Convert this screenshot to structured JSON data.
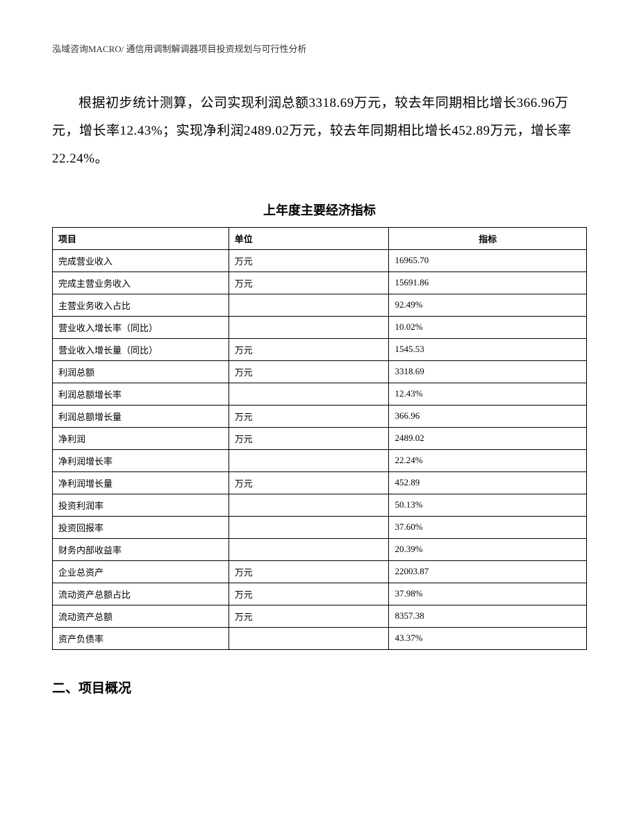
{
  "header": {
    "text": "泓域咨询MACRO/ 通信用调制解调器项目投资规划与可行性分析"
  },
  "paragraph": {
    "text": "根据初步统计测算，公司实现利润总额3318.69万元，较去年同期相比增长366.96万元，增长率12.43%；实现净利润2489.02万元，较去年同期相比增长452.89万元，增长率22.24%。"
  },
  "table": {
    "title": "上年度主要经济指标",
    "columns": {
      "project": "项目",
      "unit": "单位",
      "indicator": "指标"
    },
    "rows": [
      {
        "project": "完成营业收入",
        "unit": "万元",
        "indicator": "16965.70"
      },
      {
        "project": "完成主营业务收入",
        "unit": "万元",
        "indicator": "15691.86"
      },
      {
        "project": "主营业务收入占比",
        "unit": "",
        "indicator": "92.49%"
      },
      {
        "project": "营业收入增长率（同比）",
        "unit": "",
        "indicator": "10.02%"
      },
      {
        "project": "营业收入增长量（同比）",
        "unit": "万元",
        "indicator": "1545.53"
      },
      {
        "project": "利润总额",
        "unit": "万元",
        "indicator": "3318.69"
      },
      {
        "project": "利润总额增长率",
        "unit": "",
        "indicator": "12.43%"
      },
      {
        "project": "利润总额增长量",
        "unit": "万元",
        "indicator": "366.96"
      },
      {
        "project": "净利润",
        "unit": "万元",
        "indicator": "2489.02"
      },
      {
        "project": "净利润增长率",
        "unit": "",
        "indicator": "22.24%"
      },
      {
        "project": "净利润增长量",
        "unit": "万元",
        "indicator": "452.89"
      },
      {
        "project": "投资利润率",
        "unit": "",
        "indicator": "50.13%"
      },
      {
        "project": "投资回报率",
        "unit": "",
        "indicator": "37.60%"
      },
      {
        "project": "财务内部收益率",
        "unit": "",
        "indicator": "20.39%"
      },
      {
        "project": "企业总资产",
        "unit": "万元",
        "indicator": "22003.87"
      },
      {
        "project": "流动资产总额占比",
        "unit": "万元",
        "indicator": "37.98%"
      },
      {
        "project": "流动资产总额",
        "unit": "万元",
        "indicator": "8357.38"
      },
      {
        "project": "资产负债率",
        "unit": "",
        "indicator": "43.37%"
      }
    ]
  },
  "section_heading": {
    "text": "二、项目概况"
  },
  "styling": {
    "background_color": "#ffffff",
    "text_color": "#000000",
    "border_color": "#000000",
    "header_fontsize": 13,
    "paragraph_fontsize": 19,
    "table_title_fontsize": 18,
    "table_fontsize": 13,
    "section_heading_fontsize": 19
  }
}
